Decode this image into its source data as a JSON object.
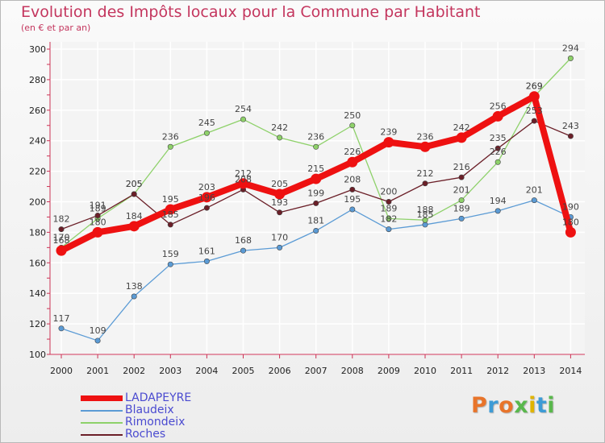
{
  "title": "Evolution des Impôts locaux pour la Commune par Habitant",
  "subtitle": "(en € et par an)",
  "logo": {
    "text": "Proxiti",
    "colors": [
      "#e8742a",
      "#3d9bd6",
      "#e8742a",
      "#59b84c",
      "#e0b400",
      "#3d9bd6",
      "#59b84c"
    ]
  },
  "chart_data": {
    "type": "line",
    "title": "Evolution des Impôts locaux pour la Commune par Habitant",
    "subtitle": "(en € et par an)",
    "x": [
      "2000",
      "2001",
      "2002",
      "2003",
      "2004",
      "2005",
      "2006",
      "2007",
      "2008",
      "2009",
      "2010",
      "2011",
      "2012",
      "2013",
      "2014"
    ],
    "yticks": [
      "100",
      "120",
      "140",
      "160",
      "180",
      "200",
      "220",
      "240",
      "260",
      "280",
      "300"
    ],
    "ylim": [
      100,
      300
    ],
    "grid": true,
    "legend_position": "bottom-left",
    "series": [
      {
        "name": "LADAPEYRE",
        "color": "#ee1111",
        "values": [
          168,
          180,
          184,
          195,
          203,
          212,
          205,
          215,
          226,
          239,
          236,
          242,
          256,
          269,
          180
        ]
      },
      {
        "name": "Blaudeix",
        "color": "#5b9bd5",
        "values": [
          117,
          109,
          138,
          159,
          161,
          168,
          170,
          181,
          195,
          182,
          185,
          189,
          194,
          201,
          190
        ]
      },
      {
        "name": "Rimondeix",
        "color": "#8ed16a",
        "values": [
          170,
          189,
          205,
          236,
          245,
          254,
          242,
          236,
          250,
          189,
          188,
          201,
          226,
          269,
          294
        ]
      },
      {
        "name": "Roches",
        "color": "#6b1f28",
        "values": [
          182,
          191,
          205,
          185,
          196,
          208,
          193,
          199,
          208,
          200,
          212,
          216,
          235,
          253,
          243
        ]
      }
    ]
  }
}
